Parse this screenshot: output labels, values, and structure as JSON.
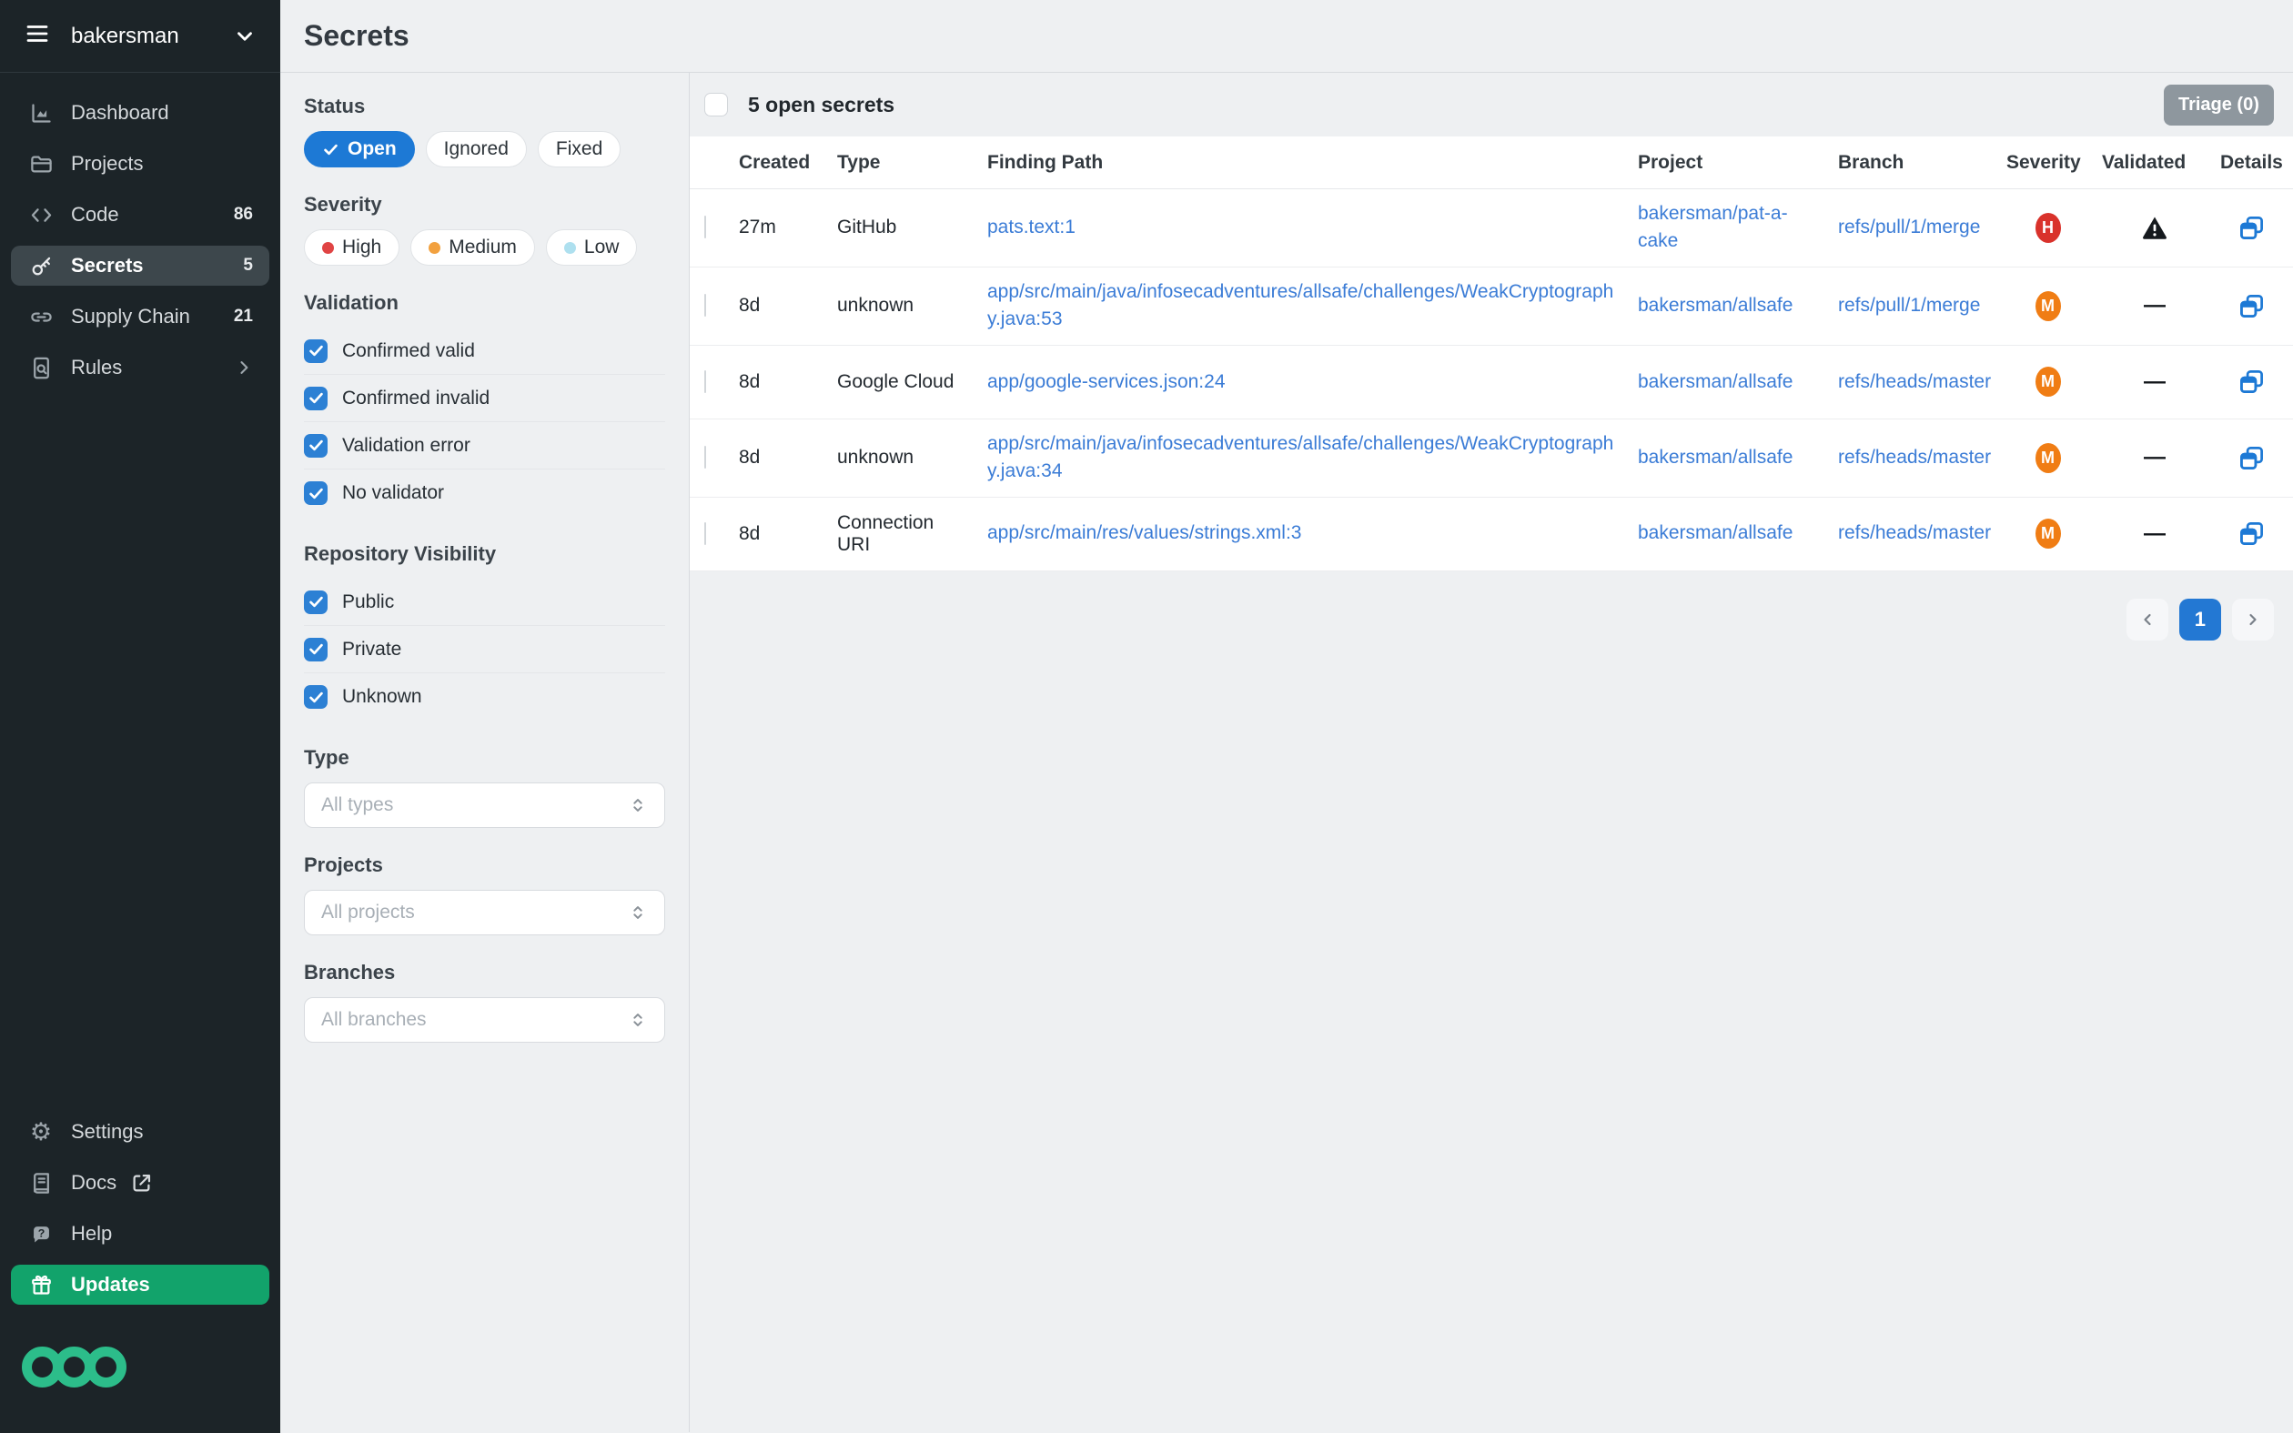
{
  "colors": {
    "accent_blue": "#1D79D5",
    "link_blue": "#3B7CD6",
    "severity_high": "#D9322B",
    "severity_medium": "#F07D14",
    "dot_high": "#E04444",
    "dot_medium": "#F2A13F",
    "dot_low": "#AEE0EF",
    "updates_green": "#12A36B",
    "logo_green": "#2CBD8A",
    "sidebar_bg": "#1C2428"
  },
  "sidebar": {
    "org_name": "bakersman",
    "nav_items": [
      {
        "label": "Dashboard",
        "icon": "dashboard",
        "badge": "",
        "active": false,
        "chevron": false
      },
      {
        "label": "Projects",
        "icon": "folder",
        "badge": "",
        "active": false,
        "chevron": false
      },
      {
        "label": "Code",
        "icon": "code",
        "badge": "86",
        "active": false,
        "chevron": false
      },
      {
        "label": "Secrets",
        "icon": "key",
        "badge": "5",
        "active": true,
        "chevron": false
      },
      {
        "label": "Supply Chain",
        "icon": "chain",
        "badge": "21",
        "active": false,
        "chevron": false
      },
      {
        "label": "Rules",
        "icon": "doc-search",
        "badge": "",
        "active": false,
        "chevron": true
      }
    ],
    "footer_items": [
      {
        "label": "Settings",
        "icon": "gear",
        "external": false,
        "highlight": false
      },
      {
        "label": "Docs",
        "icon": "book",
        "external": true,
        "highlight": false
      },
      {
        "label": "Help",
        "icon": "help",
        "external": false,
        "highlight": false
      },
      {
        "label": "Updates",
        "icon": "gift",
        "external": false,
        "highlight": true
      }
    ]
  },
  "page": {
    "title": "Secrets"
  },
  "filters": {
    "status": {
      "label": "Status",
      "options": [
        {
          "label": "Open",
          "selected": true
        },
        {
          "label": "Ignored",
          "selected": false
        },
        {
          "label": "Fixed",
          "selected": false
        }
      ]
    },
    "severity": {
      "label": "Severity",
      "options": [
        {
          "label": "High",
          "dot": "dot_high"
        },
        {
          "label": "Medium",
          "dot": "dot_medium"
        },
        {
          "label": "Low",
          "dot": "dot_low"
        }
      ]
    },
    "validation": {
      "label": "Validation",
      "options": [
        "Confirmed valid",
        "Confirmed invalid",
        "Validation error",
        "No validator"
      ]
    },
    "visibility": {
      "label": "Repository Visibility",
      "options": [
        "Public",
        "Private",
        "Unknown"
      ]
    },
    "selects": [
      {
        "label": "Type",
        "placeholder": "All types"
      },
      {
        "label": "Projects",
        "placeholder": "All projects"
      },
      {
        "label": "Branches",
        "placeholder": "All branches"
      }
    ]
  },
  "results": {
    "summary": "5 open secrets",
    "triage_label": "Triage (0)",
    "columns": [
      "Created",
      "Type",
      "Finding Path",
      "Project",
      "Branch",
      "Severity",
      "Validated",
      "Details"
    ],
    "rows": [
      {
        "created": "27m",
        "type": "GitHub",
        "path": "pats.text:1",
        "project": "bakersman/pat-a-cake",
        "branch": "refs/pull/1/merge",
        "severity": "H",
        "validated": "warning"
      },
      {
        "created": "8d",
        "type": "unknown",
        "path": "app/src/main/java/infosecadventures/allsafe/challenges/WeakCryptography.java:53",
        "project": "bakersman/allsafe",
        "branch": "refs/pull/1/merge",
        "severity": "M",
        "validated": "—"
      },
      {
        "created": "8d",
        "type": "Google Cloud",
        "path": "app/google-services.json:24",
        "project": "bakersman/allsafe",
        "branch": "refs/heads/master",
        "severity": "M",
        "validated": "—"
      },
      {
        "created": "8d",
        "type": "unknown",
        "path": "app/src/main/java/infosecadventures/allsafe/challenges/WeakCryptography.java:34",
        "project": "bakersman/allsafe",
        "branch": "refs/heads/master",
        "severity": "M",
        "validated": "—"
      },
      {
        "created": "8d",
        "type": "Connection URI",
        "path": "app/src/main/res/values/strings.xml:3",
        "project": "bakersman/allsafe",
        "branch": "refs/heads/master",
        "severity": "M",
        "validated": "—"
      }
    ],
    "pagination": {
      "current": "1"
    }
  }
}
